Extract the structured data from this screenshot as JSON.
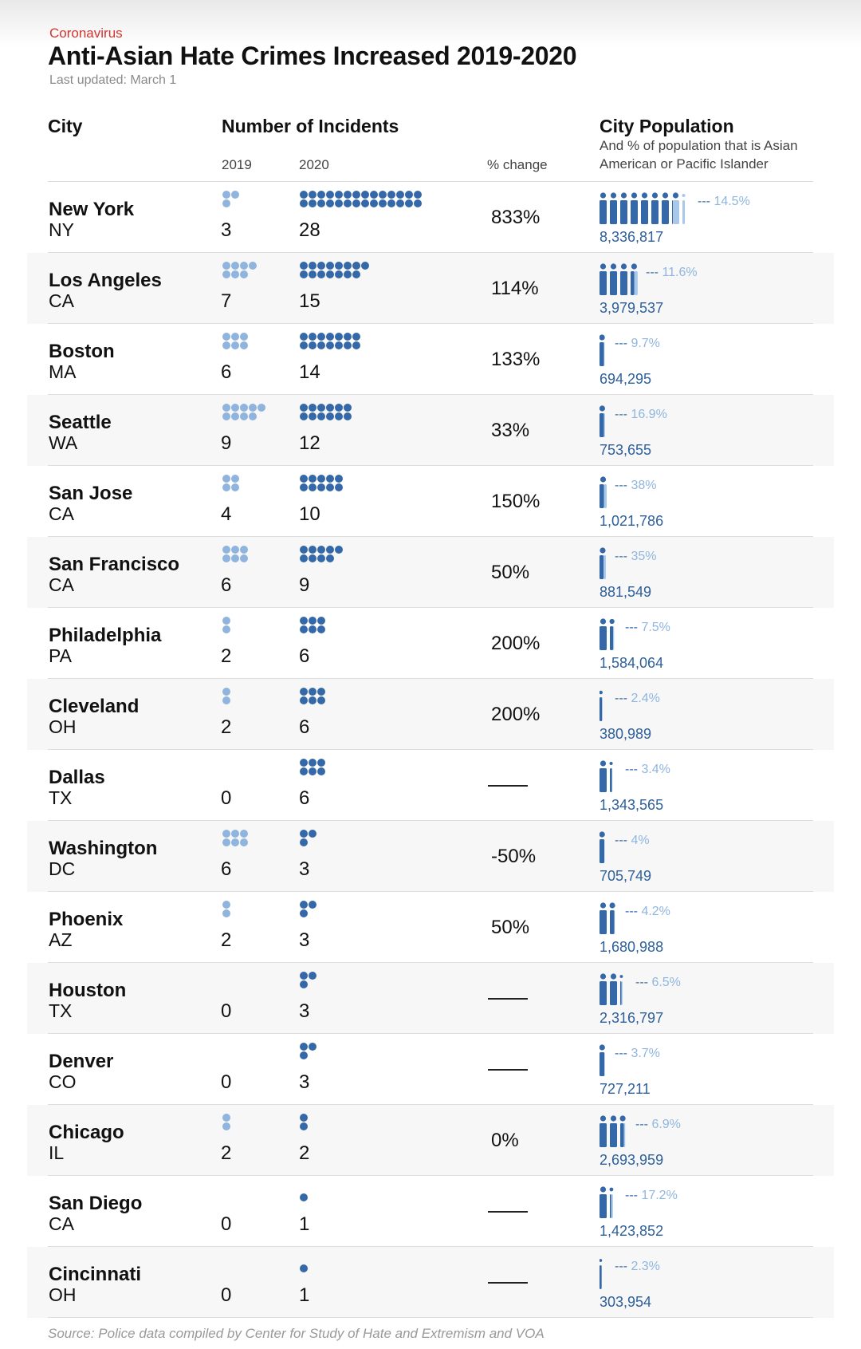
{
  "header": {
    "kicker": "Coronavirus",
    "title": "Anti-Asian Hate Crimes Increased 2019-2020",
    "updated": "Last updated: March 1"
  },
  "columns": {
    "city": "City",
    "incidents": "Number of Incidents",
    "year_a": "2019",
    "year_b": "2020",
    "change": "% change",
    "population": "City Population",
    "population_sub": "And % of population that is Asian American or Pacific Islander"
  },
  "colors": {
    "dot_2019": "#8fb4dd",
    "dot_2020": "#3468a8",
    "figure_dark": "#3468a8",
    "figure_light": "#a8c8ea"
  },
  "chart_data": {
    "type": "table",
    "rows": [
      {
        "name": "New York",
        "state": "NY",
        "y2019": "3",
        "y2020": "28",
        "change": "833%",
        "population": "8,336,817",
        "asian_pct": "14.5%"
      },
      {
        "name": "Los Angeles",
        "state": "CA",
        "y2019": "7",
        "y2020": "15",
        "change": "114%",
        "population": "3,979,537",
        "asian_pct": "11.6%"
      },
      {
        "name": "Boston",
        "state": "MA",
        "y2019": "6",
        "y2020": "14",
        "change": "133%",
        "population": "694,295",
        "asian_pct": "9.7%"
      },
      {
        "name": "Seattle",
        "state": "WA",
        "y2019": "9",
        "y2020": "12",
        "change": "33%",
        "population": "753,655",
        "asian_pct": "16.9%"
      },
      {
        "name": "San Jose",
        "state": "CA",
        "y2019": "4",
        "y2020": "10",
        "change": "150%",
        "population": "1,021,786",
        "asian_pct": "38%"
      },
      {
        "name": "San Francisco",
        "state": "CA",
        "y2019": "6",
        "y2020": "9",
        "change": "50%",
        "population": "881,549",
        "asian_pct": "35%"
      },
      {
        "name": "Philadelphia",
        "state": "PA",
        "y2019": "2",
        "y2020": "6",
        "change": "200%",
        "population": "1,584,064",
        "asian_pct": "7.5%"
      },
      {
        "name": "Cleveland",
        "state": "OH",
        "y2019": "2",
        "y2020": "6",
        "change": "200%",
        "population": "380,989",
        "asian_pct": "2.4%"
      },
      {
        "name": "Dallas",
        "state": "TX",
        "y2019": "0",
        "y2020": "6",
        "change": null,
        "population": "1,343,565",
        "asian_pct": "3.4%"
      },
      {
        "name": "Washington",
        "state": "DC",
        "y2019": "6",
        "y2020": "3",
        "change": "-50%",
        "population": "705,749",
        "asian_pct": "4%"
      },
      {
        "name": "Phoenix",
        "state": "AZ",
        "y2019": "2",
        "y2020": "3",
        "change": "50%",
        "population": "1,680,988",
        "asian_pct": "4.2%"
      },
      {
        "name": "Houston",
        "state": "TX",
        "y2019": "0",
        "y2020": "3",
        "change": null,
        "population": "2,316,797",
        "asian_pct": "6.5%"
      },
      {
        "name": "Denver",
        "state": "CO",
        "y2019": "0",
        "y2020": "3",
        "change": null,
        "population": "727,211",
        "asian_pct": "3.7%"
      },
      {
        "name": "Chicago",
        "state": "IL",
        "y2019": "2",
        "y2020": "2",
        "change": "0%",
        "population": "2,693,959",
        "asian_pct": "6.9%"
      },
      {
        "name": "San Diego",
        "state": "CA",
        "y2019": "0",
        "y2020": "1",
        "change": null,
        "population": "1,423,852",
        "asian_pct": "17.2%"
      },
      {
        "name": "Cincinnati",
        "state": "OH",
        "y2019": "0",
        "y2020": "1",
        "change": null,
        "population": "303,954",
        "asian_pct": "2.3%"
      }
    ]
  },
  "footer": {
    "source": "Source: Police data compiled by Center for Study of Hate and Extremism and VOA"
  }
}
